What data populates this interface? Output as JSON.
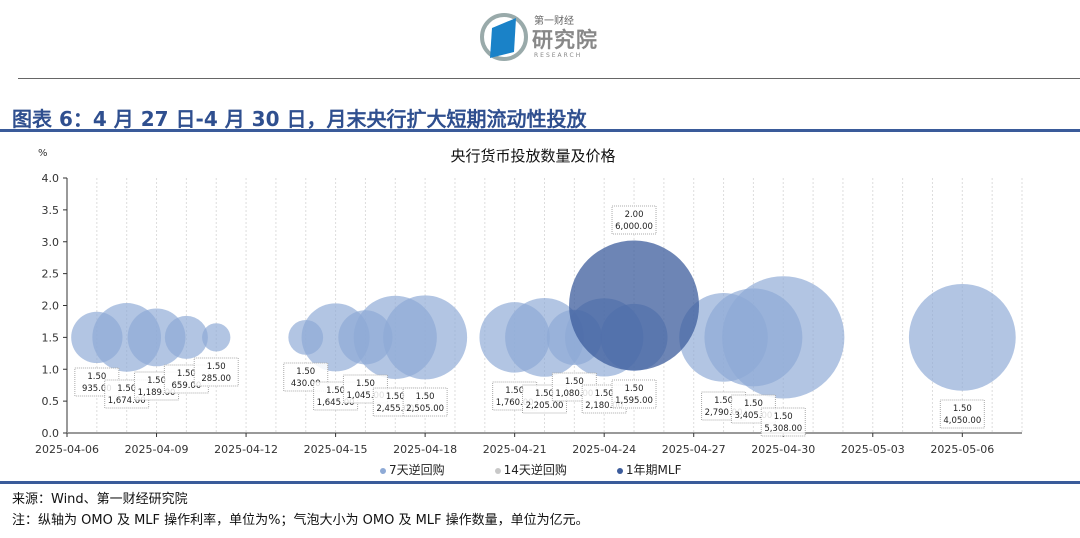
{
  "header": {
    "logo_cn_small": "第一财经",
    "logo_cn_big": "研究院",
    "logo_en": "RESEARCH",
    "figure_title": "图表 6：4 月 27 日-4 月 30 日，月末央行扩大短期流动性投放"
  },
  "chart_data": {
    "type": "bubble",
    "title": "央行货币投放数量及价格",
    "ylabel": "%",
    "ylim": [
      0,
      4.0
    ],
    "yticks": [
      "0.0",
      "0.5",
      "1.0",
      "1.5",
      "2.0",
      "2.5",
      "3.0",
      "3.5",
      "4.0"
    ],
    "xlim": [
      "2025-04-06",
      "2025-05-08"
    ],
    "xticks": [
      "2025-04-06",
      "2025-04-09",
      "2025-04-12",
      "2025-04-15",
      "2025-04-18",
      "2025-04-21",
      "2025-04-24",
      "2025-04-27",
      "2025-04-30",
      "2025-05-03",
      "2025-05-06"
    ],
    "grid": "vertical dotted",
    "legend_position": "bottom",
    "series": [
      {
        "name": "7天逆回购",
        "color": "#8eaad6",
        "points": [
          {
            "date": "2025-04-07",
            "rate": "1.50",
            "amount": "935.00"
          },
          {
            "date": "2025-04-08",
            "rate": "1.50",
            "amount": "1,674.00"
          },
          {
            "date": "2025-04-09",
            "rate": "1.50",
            "amount": "1,189.00"
          },
          {
            "date": "2025-04-10",
            "rate": "1.50",
            "amount": "659.00"
          },
          {
            "date": "2025-04-11",
            "rate": "1.50",
            "amount": "285.00"
          },
          {
            "date": "2025-04-14",
            "rate": "1.50",
            "amount": "430.00"
          },
          {
            "date": "2025-04-15",
            "rate": "1.50",
            "amount": "1,645.00"
          },
          {
            "date": "2025-04-16",
            "rate": "1.50",
            "amount": "1,045.00"
          },
          {
            "date": "2025-04-17",
            "rate": "1.50",
            "amount": "2,455.00"
          },
          {
            "date": "2025-04-18",
            "rate": "1.50",
            "amount": "2,505.00"
          },
          {
            "date": "2025-04-21",
            "rate": "1.50",
            "amount": "1,760.00"
          },
          {
            "date": "2025-04-22",
            "rate": "1.50",
            "amount": "2,205.00"
          },
          {
            "date": "2025-04-23",
            "rate": "1.50",
            "amount": "1,080.00"
          },
          {
            "date": "2025-04-24",
            "rate": "1.50",
            "amount": "2,180.00"
          },
          {
            "date": "2025-04-25",
            "rate": "1.50",
            "amount": "1,595.00"
          },
          {
            "date": "2025-04-28",
            "rate": "1.50",
            "amount": "2,790.00"
          },
          {
            "date": "2025-04-29",
            "rate": "1.50",
            "amount": "3,405.00"
          },
          {
            "date": "2025-04-30",
            "rate": "1.50",
            "amount": "5,308.00"
          },
          {
            "date": "2025-05-06",
            "rate": "1.50",
            "amount": "4,050.00"
          }
        ]
      },
      {
        "name": "14天逆回购",
        "color": "#c8c8c8",
        "points": []
      },
      {
        "name": "1年期MLF",
        "color": "#3c5c9c",
        "points": [
          {
            "date": "2025-04-25",
            "rate": "2.00",
            "amount": "6,000.00"
          }
        ]
      }
    ]
  },
  "footer": {
    "source": "来源：Wind、第一财经研究院",
    "note": "注：纵轴为 OMO 及 MLF 操作利率，单位为%；气泡大小为 OMO 及 MLF 操作数量，单位为亿元。"
  }
}
